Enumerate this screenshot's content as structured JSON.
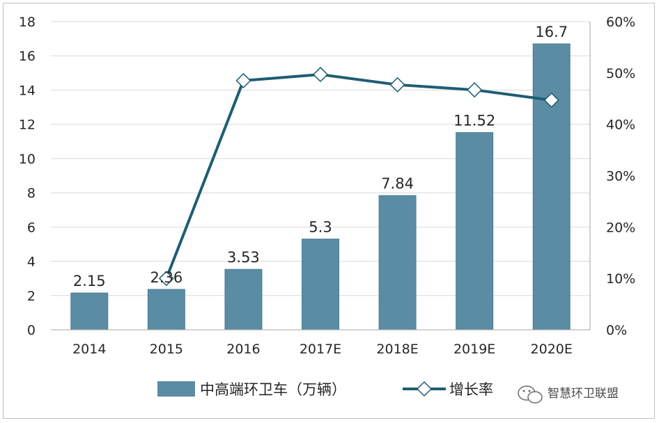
{
  "chart_data": {
    "type": "bar",
    "categories": [
      "2014",
      "2015",
      "2016",
      "2017E",
      "2018E",
      "2019E",
      "2020E"
    ],
    "series": [
      {
        "name": "中高端环卫车（万辆）",
        "type": "bar",
        "axis": "left",
        "values": [
          2.15,
          2.36,
          3.53,
          5.3,
          7.84,
          11.52,
          16.7
        ],
        "labels": [
          "2.15",
          "2.36",
          "3.53",
          "5.3",
          "7.84",
          "11.52",
          "16.7"
        ]
      },
      {
        "name": "增长率",
        "type": "line",
        "axis": "right",
        "values": [
          null,
          0.1,
          0.485,
          0.497,
          0.477,
          0.467,
          0.447
        ]
      }
    ],
    "ylim": [
      0,
      18
    ],
    "y_ticks": [
      "0",
      "2",
      "4",
      "6",
      "8",
      "10",
      "12",
      "14",
      "16",
      "18"
    ],
    "y2lim": [
      0,
      0.6
    ],
    "y2_ticks": [
      "0%",
      "10%",
      "20%",
      "30%",
      "40%",
      "50%",
      "60%"
    ],
    "grid": true,
    "legend_position": "bottom",
    "colors": {
      "bar": "#5a8ca3",
      "bar_edge": "#4d7e95",
      "line": "#1f5d73",
      "grid": "#d9d9d9"
    }
  },
  "watermark": {
    "icon": "wechat-icon",
    "text": "智慧环卫联盟"
  }
}
